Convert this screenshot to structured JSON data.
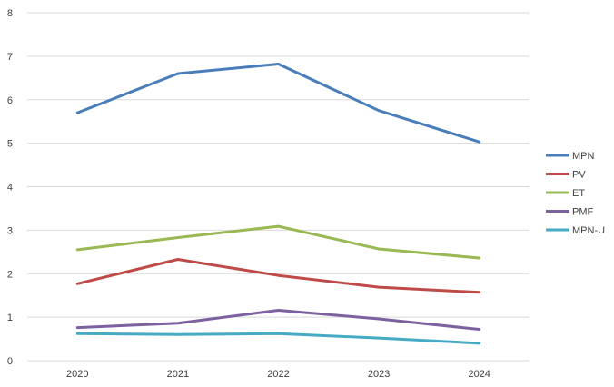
{
  "chart_data": {
    "type": "line",
    "title": "",
    "xlabel": "",
    "ylabel": "",
    "x": [
      "2020",
      "2021",
      "2022",
      "2023",
      "2024"
    ],
    "ylim": [
      0,
      8
    ],
    "yticks": [
      "0",
      "1",
      "2",
      "3",
      "4",
      "5",
      "6",
      "7",
      "8"
    ],
    "grid": "horizontal",
    "legend_position": "right",
    "series": [
      {
        "name": "MPN",
        "color": "#4a7ebb",
        "values": [
          5.7,
          6.6,
          6.82,
          5.75,
          5.03
        ]
      },
      {
        "name": "PV",
        "color": "#be4b48",
        "values": [
          1.77,
          2.33,
          1.96,
          1.69,
          1.57
        ]
      },
      {
        "name": "ET",
        "color": "#98b954",
        "values": [
          2.55,
          2.83,
          3.09,
          2.57,
          2.36
        ]
      },
      {
        "name": "PMF",
        "color": "#7d60a0",
        "values": [
          0.76,
          0.86,
          1.16,
          0.96,
          0.72
        ]
      },
      {
        "name": "MPN-U",
        "color": "#46aac5",
        "values": [
          0.62,
          0.6,
          0.62,
          0.52,
          0.4
        ]
      }
    ]
  }
}
